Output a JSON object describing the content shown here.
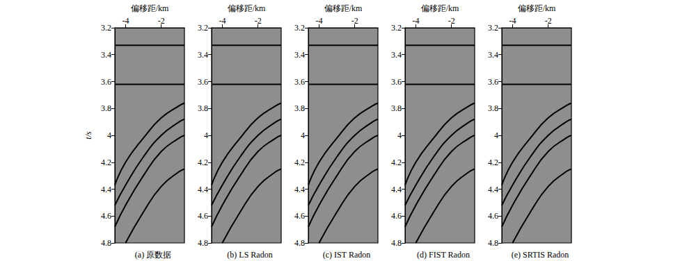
{
  "chart_data": [
    {
      "type": "line",
      "subtitle": "(a) 原数据",
      "x_label": "偏移距/km",
      "y_label": "t/s",
      "xlim": [
        -4.6,
        -0.7
      ],
      "xticks": [
        -4,
        -2
      ],
      "ylim": [
        3.2,
        4.8
      ],
      "yticks": [
        3.2,
        3.4,
        3.6,
        3.8,
        4.0,
        4.2,
        4.4,
        4.6,
        4.8
      ],
      "tick_labels": true,
      "series": [
        {
          "color": "#000000",
          "x": [
            -4.6,
            -0.7
          ],
          "values": [
            3.33,
            3.33
          ]
        },
        {
          "color": "#000000",
          "x": [
            -4.6,
            -0.7
          ],
          "values": [
            3.62,
            3.62
          ]
        },
        {
          "color": "#000000",
          "x": [
            -4.6,
            -4,
            -3,
            -2,
            -1,
            -0.7
          ],
          "values": [
            4.37,
            4.2,
            4.02,
            3.87,
            3.78,
            3.76
          ]
        },
        {
          "color": "#000000",
          "x": [
            -4.6,
            -4,
            -3,
            -2,
            -1,
            -0.7
          ],
          "values": [
            4.52,
            4.37,
            4.16,
            4.0,
            3.9,
            3.88
          ]
        },
        {
          "color": "#000000",
          "x": [
            -4.6,
            -4,
            -3,
            -2,
            -1,
            -0.7
          ],
          "values": [
            4.68,
            4.52,
            4.3,
            4.12,
            4.02,
            4.0
          ]
        },
        {
          "color": "#000000",
          "x": [
            -4,
            -3,
            -2,
            -1,
            -0.7
          ],
          "values": [
            4.8,
            4.57,
            4.38,
            4.27,
            4.25
          ]
        }
      ]
    },
    {
      "type": "line",
      "subtitle": "(b) LS Radon",
      "x_label": "偏移距/km",
      "xlim": [
        -4.6,
        -0.7
      ],
      "xticks": [
        -4,
        -2
      ],
      "ylim": [
        3.2,
        4.8
      ],
      "yticks": [
        3.2,
        3.4,
        3.6,
        3.8,
        4.0,
        4.2,
        4.4,
        4.6,
        4.8
      ],
      "tick_labels": true,
      "series": [
        {
          "color": "#000000",
          "x": [
            -4.6,
            -0.7
          ],
          "values": [
            3.33,
            3.33
          ]
        },
        {
          "color": "#000000",
          "x": [
            -4.6,
            -0.7
          ],
          "values": [
            3.62,
            3.62
          ]
        },
        {
          "color": "#000000",
          "x": [
            -4.6,
            -4,
            -3,
            -2,
            -1,
            -0.7
          ],
          "values": [
            4.37,
            4.2,
            4.02,
            3.87,
            3.78,
            3.76
          ]
        },
        {
          "color": "#000000",
          "x": [
            -4.6,
            -4,
            -3,
            -2,
            -1,
            -0.7
          ],
          "values": [
            4.52,
            4.37,
            4.16,
            4.0,
            3.9,
            3.88
          ]
        },
        {
          "color": "#000000",
          "x": [
            -4.6,
            -4,
            -3,
            -2,
            -1,
            -0.7
          ],
          "values": [
            4.68,
            4.52,
            4.3,
            4.12,
            4.02,
            4.0
          ]
        },
        {
          "color": "#000000",
          "x": [
            -4,
            -3,
            -2,
            -1,
            -0.7
          ],
          "values": [
            4.8,
            4.57,
            4.38,
            4.27,
            4.25
          ]
        }
      ]
    },
    {
      "type": "line",
      "subtitle": "(c) IST Radon",
      "x_label": "偏移距/km",
      "xlim": [
        -4.6,
        -0.7
      ],
      "xticks": [
        -4,
        -2
      ],
      "ylim": [
        3.2,
        4.8
      ],
      "yticks": [
        3.2,
        3.4,
        3.6,
        3.8,
        4.0,
        4.2,
        4.4,
        4.6,
        4.8
      ],
      "tick_labels": true,
      "series": [
        {
          "color": "#000000",
          "x": [
            -4.6,
            -0.7
          ],
          "values": [
            3.33,
            3.33
          ]
        },
        {
          "color": "#000000",
          "x": [
            -4.6,
            -0.7
          ],
          "values": [
            3.62,
            3.62
          ]
        },
        {
          "color": "#000000",
          "x": [
            -4.6,
            -4,
            -3,
            -2,
            -1,
            -0.7
          ],
          "values": [
            4.37,
            4.2,
            4.02,
            3.87,
            3.78,
            3.76
          ]
        },
        {
          "color": "#000000",
          "x": [
            -4.6,
            -4,
            -3,
            -2,
            -1,
            -0.7
          ],
          "values": [
            4.52,
            4.37,
            4.16,
            4.0,
            3.9,
            3.88
          ]
        },
        {
          "color": "#000000",
          "x": [
            -4.6,
            -4,
            -3,
            -2,
            -1,
            -0.7
          ],
          "values": [
            4.68,
            4.52,
            4.3,
            4.12,
            4.02,
            4.0
          ]
        },
        {
          "color": "#000000",
          "x": [
            -4,
            -3,
            -2,
            -1,
            -0.7
          ],
          "values": [
            4.8,
            4.57,
            4.38,
            4.27,
            4.25
          ]
        }
      ]
    },
    {
      "type": "line",
      "subtitle": "(d) FIST Radon",
      "x_label": "偏移距/km",
      "xlim": [
        -4.6,
        -0.7
      ],
      "xticks": [
        -4,
        -2
      ],
      "ylim": [
        3.2,
        4.8
      ],
      "yticks": [
        3.2,
        3.4,
        3.6,
        3.8,
        4.0,
        4.2,
        4.4,
        4.6,
        4.8
      ],
      "tick_labels": true,
      "series": [
        {
          "color": "#000000",
          "x": [
            -4.6,
            -0.7
          ],
          "values": [
            3.33,
            3.33
          ]
        },
        {
          "color": "#000000",
          "x": [
            -4.6,
            -0.7
          ],
          "values": [
            3.62,
            3.62
          ]
        },
        {
          "color": "#000000",
          "x": [
            -4.6,
            -4,
            -3,
            -2,
            -1,
            -0.7
          ],
          "values": [
            4.37,
            4.2,
            4.02,
            3.87,
            3.78,
            3.76
          ]
        },
        {
          "color": "#000000",
          "x": [
            -4.6,
            -4,
            -3,
            -2,
            -1,
            -0.7
          ],
          "values": [
            4.52,
            4.37,
            4.16,
            4.0,
            3.9,
            3.88
          ]
        },
        {
          "color": "#000000",
          "x": [
            -4.6,
            -4,
            -3,
            -2,
            -1,
            -0.7
          ],
          "values": [
            4.68,
            4.52,
            4.3,
            4.12,
            4.02,
            4.0
          ]
        },
        {
          "color": "#000000",
          "x": [
            -4,
            -3,
            -2,
            -1,
            -0.7
          ],
          "values": [
            4.8,
            4.57,
            4.38,
            4.27,
            4.25
          ]
        }
      ]
    },
    {
      "type": "line",
      "subtitle": "(e) SRTIS Radon",
      "x_label": "偏移距/km",
      "xlim": [
        -4.6,
        -0.7
      ],
      "xticks": [
        -4,
        -2
      ],
      "ylim": [
        3.2,
        4.8
      ],
      "yticks": [
        3.2,
        3.4,
        3.6,
        3.8,
        4.0,
        4.2,
        4.4,
        4.6,
        4.8
      ],
      "tick_labels": true,
      "series": [
        {
          "color": "#000000",
          "x": [
            -4.6,
            -0.7
          ],
          "values": [
            3.33,
            3.33
          ]
        },
        {
          "color": "#000000",
          "x": [
            -4.6,
            -0.7
          ],
          "values": [
            3.62,
            3.62
          ]
        },
        {
          "color": "#000000",
          "x": [
            -4.6,
            -4,
            -3,
            -2,
            -1,
            -0.7
          ],
          "values": [
            4.37,
            4.2,
            4.02,
            3.87,
            3.78,
            3.76
          ]
        },
        {
          "color": "#000000",
          "x": [
            -4.6,
            -4,
            -3,
            -2,
            -1,
            -0.7
          ],
          "values": [
            4.52,
            4.37,
            4.16,
            4.0,
            3.9,
            3.88
          ]
        },
        {
          "color": "#000000",
          "x": [
            -4.6,
            -4,
            -3,
            -2,
            -1,
            -0.7
          ],
          "values": [
            4.68,
            4.52,
            4.3,
            4.12,
            4.02,
            4.0
          ]
        },
        {
          "color": "#000000",
          "x": [
            -4,
            -3,
            -2,
            -1,
            -0.7
          ],
          "values": [
            4.8,
            4.57,
            4.38,
            4.27,
            4.25
          ]
        }
      ]
    }
  ]
}
